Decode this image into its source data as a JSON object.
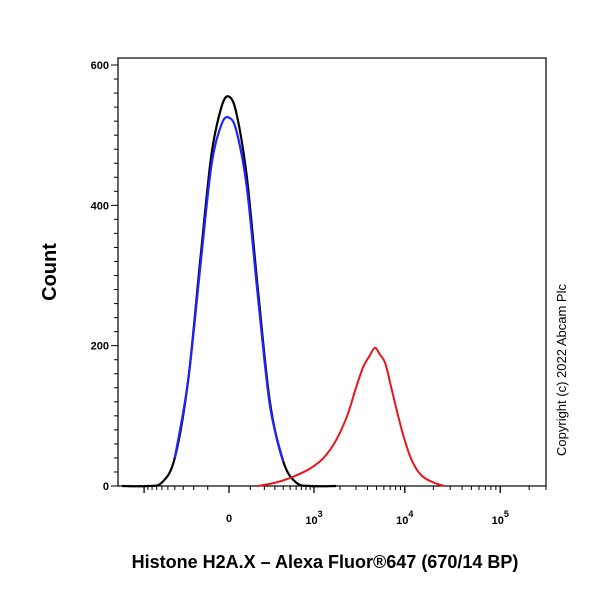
{
  "chart_data": {
    "type": "line",
    "xlabel": "Histone H2A.X – Alexa Fluor®647 (670/14 BP)",
    "ylabel": "Count",
    "x_scale": "biexponential",
    "ylim": [
      0,
      610
    ],
    "y_ticks": [
      {
        "value": 0,
        "label": "0"
      },
      {
        "value": 200,
        "label": "200"
      },
      {
        "value": 400,
        "label": "400"
      },
      {
        "value": 600,
        "label": "600"
      }
    ],
    "x_ticks": [
      {
        "value": 0,
        "base": "0",
        "exp": ""
      },
      {
        "value": 1000,
        "base": "10",
        "exp": "3"
      },
      {
        "value": 10000,
        "base": "10",
        "exp": "4"
      },
      {
        "value": 100000,
        "base": "10",
        "exp": "5"
      }
    ],
    "annotation": "Copyright (c) 2022 Abcam Plc",
    "grid": false,
    "series": [
      {
        "color": "#000000",
        "x": [
          -1800,
          -900,
          -600,
          -400,
          -250,
          -150,
          -80,
          -30,
          0,
          30,
          80,
          150,
          250,
          400,
          600,
          900,
          1800
        ],
        "y": [
          0,
          0,
          5,
          40,
          150,
          320,
          470,
          540,
          555,
          530,
          440,
          280,
          120,
          35,
          5,
          0,
          0
        ]
      },
      {
        "color": "#2222ff",
        "x": [
          -400,
          -250,
          -150,
          -80,
          -30,
          0,
          30,
          80,
          150,
          250,
          400
        ],
        "y": [
          40,
          150,
          310,
          455,
          515,
          525,
          505,
          425,
          270,
          115,
          35
        ]
      },
      {
        "color": "#e8141b",
        "x": [
          150,
          250,
          400,
          600,
          900,
          1300,
          1800,
          2400,
          3000,
          3600,
          4200,
          4800,
          5400,
          6200,
          7200,
          8500,
          10000,
          12000,
          15000,
          20000,
          26000
        ],
        "y": [
          0,
          3,
          8,
          15,
          25,
          40,
          65,
          100,
          140,
          170,
          185,
          197,
          188,
          175,
          140,
          100,
          65,
          35,
          15,
          5,
          0
        ]
      }
    ]
  }
}
